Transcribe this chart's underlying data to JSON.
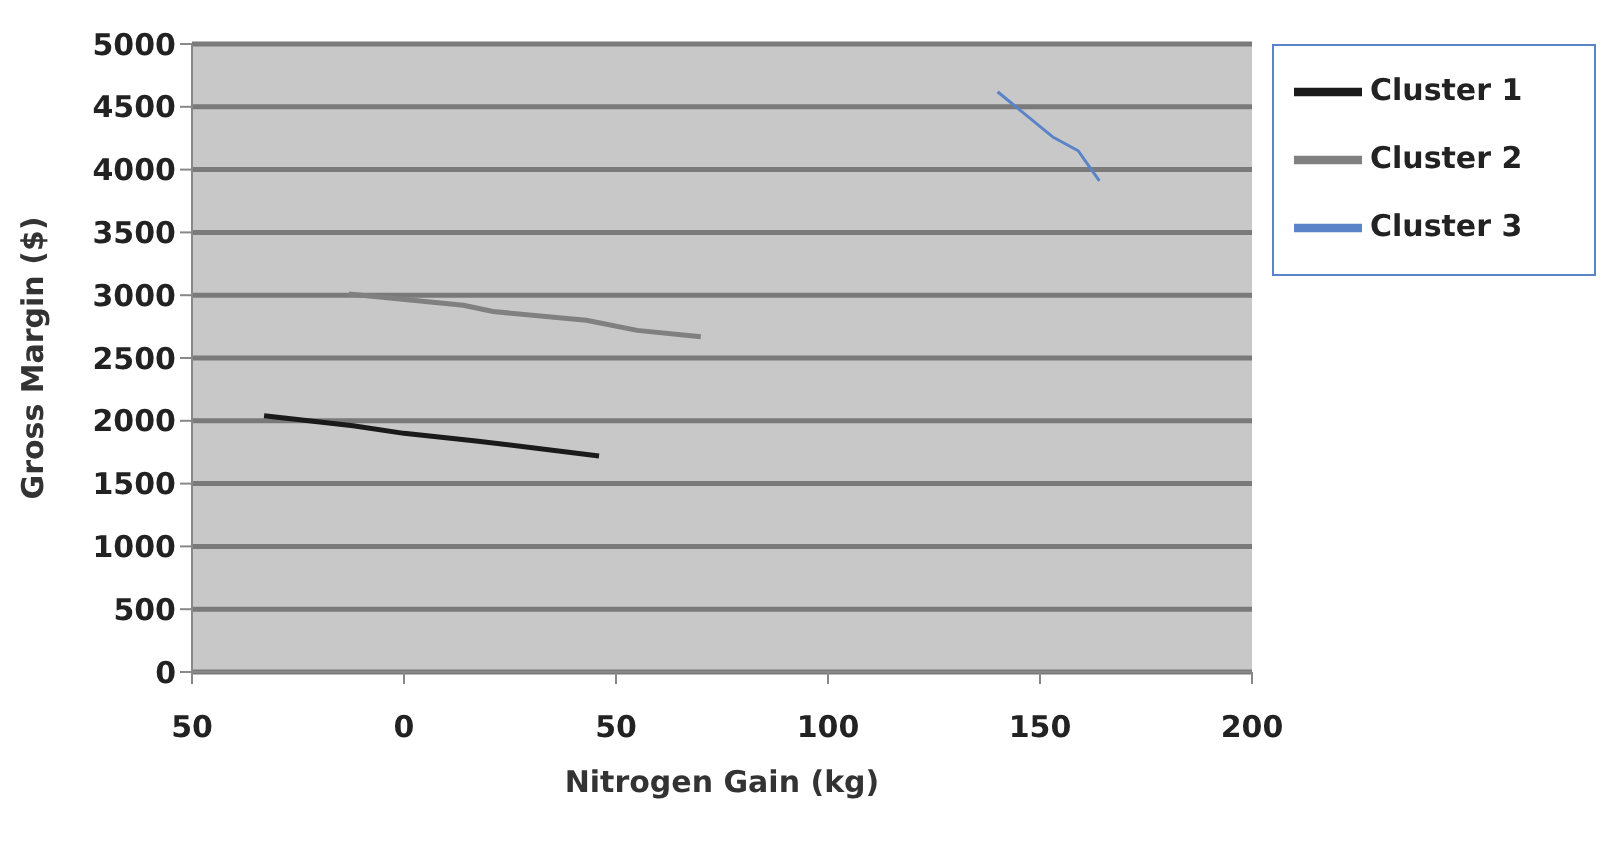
{
  "chart_data": {
    "type": "line",
    "xlabel": "Nitrogen Gain (kg)",
    "ylabel": "Gross Margin ($)",
    "xlim": [
      -50,
      200
    ],
    "xticks": [
      {
        "value": -50,
        "label": "50"
      },
      0,
      50,
      100,
      150,
      200
    ],
    "ylim": [
      0,
      5000
    ],
    "yticks": [
      0,
      500,
      1000,
      1500,
      2000,
      2500,
      3000,
      3500,
      4000,
      4500,
      5000
    ],
    "grid": "y",
    "legend": "top right",
    "marker": "none",
    "line_style": "solid",
    "series": [
      {
        "name": "Cluster 1",
        "color": "#1a1a1a",
        "x": [
          -33,
          -12,
          0,
          17,
          46
        ],
        "values": [
          2040,
          1960,
          1900,
          1840,
          1720
        ]
      },
      {
        "name": "Cluster 2",
        "color": "#808080",
        "x": [
          -13,
          14,
          21,
          43,
          55,
          70
        ],
        "values": [
          3010,
          2920,
          2870,
          2800,
          2720,
          2670
        ]
      },
      {
        "name": "Cluster 3",
        "color": "#5b84c8",
        "x": [
          140,
          153,
          159,
          164
        ],
        "values": [
          4620,
          4260,
          4150,
          3910
        ]
      }
    ]
  }
}
